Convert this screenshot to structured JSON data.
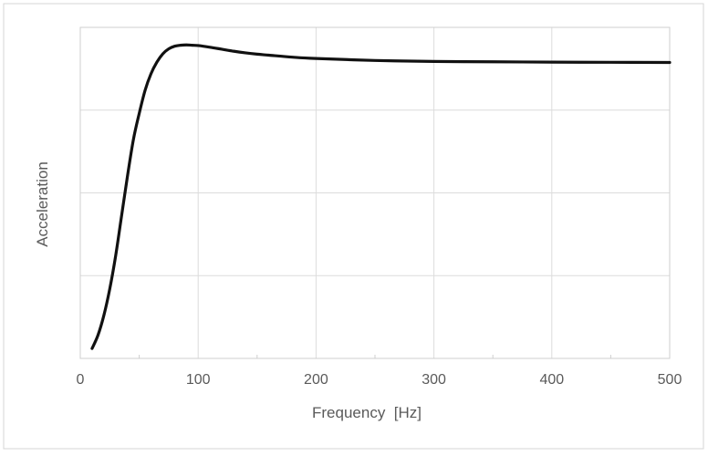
{
  "chart_data": {
    "type": "line",
    "title": "",
    "xlabel": "Frequency  [Hz]",
    "ylabel": "Acceleration",
    "xlim": [
      0,
      500
    ],
    "ylim": [
      0,
      1
    ],
    "x_ticks": [
      0,
      100,
      200,
      300,
      400,
      500
    ],
    "x_tick_labels": [
      "0",
      "100",
      "200",
      "300",
      "400",
      "500"
    ],
    "y_tick_labels": [],
    "grid": true,
    "legend": "none",
    "colors": {
      "line": "#111111",
      "grid": "#dcdcdc",
      "frame": "#cfcfcf",
      "outer_border": "#d6d6d6"
    },
    "series": [
      {
        "x": [
          10,
          15,
          20,
          25,
          30,
          35,
          40,
          45,
          50,
          55,
          60,
          65,
          70,
          75,
          80,
          85,
          90,
          95,
          100,
          110,
          120,
          130,
          140,
          150,
          160,
          180,
          200,
          250,
          300,
          350,
          400,
          450,
          500
        ],
        "values": [
          0.03,
          0.07,
          0.13,
          0.21,
          0.31,
          0.43,
          0.55,
          0.66,
          0.74,
          0.81,
          0.86,
          0.895,
          0.92,
          0.935,
          0.943,
          0.946,
          0.947,
          0.946,
          0.945,
          0.94,
          0.934,
          0.928,
          0.923,
          0.919,
          0.916,
          0.91,
          0.906,
          0.9,
          0.897,
          0.896,
          0.895,
          0.8945,
          0.894
        ]
      }
    ]
  }
}
